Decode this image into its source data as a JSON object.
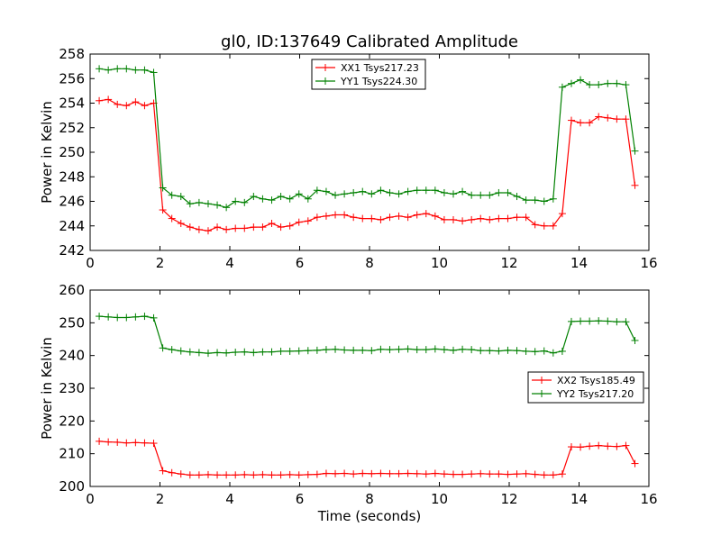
{
  "figure": {
    "title": "gl0, ID:137649 Calibrated Amplitude",
    "xlabel": "Time (seconds)"
  },
  "chart_data": [
    {
      "type": "line",
      "title": "gl0, ID:137649 Calibrated Amplitude",
      "xlabel": "",
      "ylabel": "Power in Kelvin",
      "xlim": [
        0,
        16
      ],
      "ylim": [
        242,
        258
      ],
      "xticks": [
        "0",
        "2",
        "4",
        "6",
        "8",
        "10",
        "12",
        "14",
        "16"
      ],
      "yticks": [
        "242",
        "244",
        "246",
        "248",
        "250",
        "252",
        "254",
        "256",
        "258"
      ],
      "grid": false,
      "legend_position": "top-center",
      "x": [
        0.26,
        0.52,
        0.78,
        1.04,
        1.3,
        1.56,
        1.82,
        2.08,
        2.34,
        2.6,
        2.86,
        3.12,
        3.38,
        3.64,
        3.9,
        4.16,
        4.42,
        4.68,
        4.94,
        5.2,
        5.46,
        5.72,
        5.98,
        6.24,
        6.5,
        6.76,
        7.02,
        7.28,
        7.54,
        7.8,
        8.06,
        8.32,
        8.58,
        8.84,
        9.1,
        9.36,
        9.62,
        9.88,
        10.14,
        10.4,
        10.66,
        10.92,
        11.18,
        11.44,
        11.7,
        11.96,
        12.22,
        12.48,
        12.74,
        13.0,
        13.26,
        13.52,
        13.78,
        14.04,
        14.3,
        14.56,
        14.82,
        15.08,
        15.34,
        15.6
      ],
      "series": [
        {
          "name": "XX1 Tsys217.23",
          "color": "#ff0000",
          "values": [
            254.2,
            254.3,
            253.9,
            253.8,
            254.1,
            253.8,
            254.0,
            245.3,
            244.6,
            244.2,
            243.9,
            243.7,
            243.6,
            243.9,
            243.7,
            243.8,
            243.8,
            243.9,
            243.9,
            244.2,
            243.9,
            244.0,
            244.3,
            244.4,
            244.7,
            244.8,
            244.9,
            244.9,
            244.7,
            244.6,
            244.6,
            244.5,
            244.7,
            244.8,
            244.7,
            244.9,
            245.0,
            244.8,
            244.5,
            244.5,
            244.4,
            244.5,
            244.6,
            244.5,
            244.6,
            244.6,
            244.7,
            244.7,
            244.1,
            244.0,
            244.0,
            245.0,
            252.6,
            252.4,
            252.4,
            252.9,
            252.8,
            252.7,
            252.7,
            247.3
          ]
        },
        {
          "name": "YY1 Tsys224.30",
          "color": "#008000",
          "values": [
            256.8,
            256.7,
            256.8,
            256.8,
            256.7,
            256.7,
            256.5,
            247.1,
            246.5,
            246.4,
            245.8,
            245.9,
            245.8,
            245.7,
            245.5,
            246.0,
            245.9,
            246.4,
            246.2,
            246.1,
            246.4,
            246.2,
            246.6,
            246.2,
            246.9,
            246.8,
            246.5,
            246.6,
            246.7,
            246.8,
            246.6,
            246.9,
            246.7,
            246.6,
            246.8,
            246.9,
            246.9,
            246.9,
            246.7,
            246.6,
            246.8,
            246.5,
            246.5,
            246.5,
            246.7,
            246.7,
            246.4,
            246.1,
            246.1,
            246.0,
            246.2,
            255.3,
            255.6,
            255.9,
            255.5,
            255.5,
            255.6,
            255.6,
            255.5,
            250.1
          ]
        }
      ]
    },
    {
      "type": "line",
      "title": "",
      "xlabel": "Time (seconds)",
      "ylabel": "Power in Kelvin",
      "xlim": [
        0,
        16
      ],
      "ylim": [
        200,
        260
      ],
      "xticks": [
        "0",
        "2",
        "4",
        "6",
        "8",
        "10",
        "12",
        "14",
        "16"
      ],
      "yticks": [
        "200",
        "210",
        "220",
        "230",
        "240",
        "250",
        "260"
      ],
      "grid": false,
      "legend_position": "center-right",
      "x": [
        0.26,
        0.52,
        0.78,
        1.04,
        1.3,
        1.56,
        1.82,
        2.08,
        2.34,
        2.6,
        2.86,
        3.12,
        3.38,
        3.64,
        3.9,
        4.16,
        4.42,
        4.68,
        4.94,
        5.2,
        5.46,
        5.72,
        5.98,
        6.24,
        6.5,
        6.76,
        7.02,
        7.28,
        7.54,
        7.8,
        8.06,
        8.32,
        8.58,
        8.84,
        9.1,
        9.36,
        9.62,
        9.88,
        10.14,
        10.4,
        10.66,
        10.92,
        11.18,
        11.44,
        11.7,
        11.96,
        12.22,
        12.48,
        12.74,
        13.0,
        13.26,
        13.52,
        13.78,
        14.04,
        14.3,
        14.56,
        14.82,
        15.08,
        15.34,
        15.6
      ],
      "series": [
        {
          "name": "XX2 Tsys185.49",
          "color": "#ff0000",
          "values": [
            213.8,
            213.6,
            213.5,
            213.3,
            213.4,
            213.3,
            213.2,
            204.8,
            204.2,
            203.8,
            203.5,
            203.5,
            203.6,
            203.5,
            203.5,
            203.5,
            203.6,
            203.5,
            203.6,
            203.5,
            203.5,
            203.6,
            203.5,
            203.6,
            203.7,
            204.0,
            203.9,
            204.0,
            203.8,
            204.0,
            203.9,
            204.0,
            203.9,
            203.9,
            204.0,
            203.9,
            203.8,
            204.0,
            203.8,
            203.7,
            203.7,
            203.8,
            203.9,
            203.8,
            203.8,
            203.7,
            203.8,
            203.9,
            203.7,
            203.5,
            203.5,
            203.8,
            212.1,
            212.0,
            212.3,
            212.5,
            212.3,
            212.2,
            212.5,
            207.0
          ]
        },
        {
          "name": "YY2 Tsys217.20",
          "color": "#008000",
          "values": [
            252.0,
            251.8,
            251.6,
            251.6,
            251.8,
            252.0,
            251.5,
            242.3,
            241.8,
            241.4,
            241.1,
            240.9,
            240.7,
            240.9,
            240.8,
            241.0,
            241.1,
            240.9,
            241.1,
            241.1,
            241.3,
            241.3,
            241.4,
            241.5,
            241.6,
            241.8,
            241.9,
            241.7,
            241.6,
            241.6,
            241.5,
            241.9,
            241.8,
            241.9,
            242.0,
            241.8,
            241.8,
            242.0,
            241.8,
            241.6,
            241.9,
            241.8,
            241.5,
            241.5,
            241.4,
            241.6,
            241.5,
            241.3,
            241.2,
            241.4,
            240.8,
            241.3,
            250.4,
            250.5,
            250.5,
            250.6,
            250.5,
            250.3,
            250.3,
            244.6
          ]
        }
      ]
    }
  ]
}
